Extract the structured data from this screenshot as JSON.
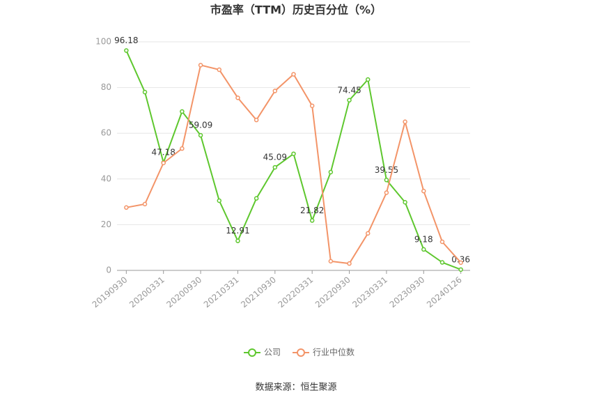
{
  "chart_data": {
    "type": "line",
    "title": "市盈率（TTM）历史百分位（%）",
    "source": "数据来源：恒生聚源",
    "categories": [
      "20190930",
      null,
      "20200331",
      null,
      "20200930",
      null,
      "20210331",
      null,
      "20210930",
      null,
      "20220331",
      null,
      "20220930",
      null,
      "20230331",
      null,
      "20230930",
      null,
      "20240126"
    ],
    "series": [
      {
        "name": "公司",
        "color": "#5ec72e",
        "values": [
          96.18,
          78,
          47.18,
          69.5,
          59.09,
          30.5,
          12.91,
          31.5,
          45.09,
          51,
          21.82,
          43,
          74.45,
          83.5,
          39.55,
          29.8,
          9.18,
          3.5,
          0.36
        ],
        "value_labels": [
          "96.18",
          null,
          "47.18",
          null,
          "59.09",
          null,
          "12.91",
          null,
          "45.09",
          null,
          "21.82",
          null,
          "74.45",
          null,
          "39.55",
          null,
          "9.18",
          null,
          "0.36"
        ]
      },
      {
        "name": "行业中位数",
        "color": "#f39468",
        "values": [
          27.5,
          29,
          47,
          53.3,
          89.8,
          87.8,
          75.5,
          65.8,
          78.5,
          85.8,
          72,
          4,
          3,
          16.2,
          34,
          65,
          34.7,
          12.5,
          3.4
        ]
      }
    ],
    "ylim": [
      0,
      100
    ],
    "yticks": [
      0,
      20,
      40,
      60,
      80,
      100
    ],
    "grid": true,
    "legend": "bottom"
  }
}
